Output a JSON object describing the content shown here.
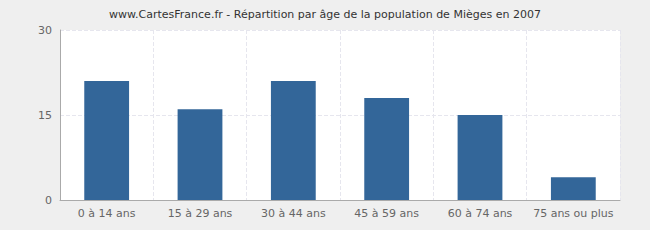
{
  "chart_data": {
    "type": "bar",
    "title": "www.CartesFrance.fr - Répartition par âge de la population de Mièges en 2007",
    "categories": [
      "0 à 14 ans",
      "15 à 29 ans",
      "30 à 44 ans",
      "45 à 59 ans",
      "60 à 74 ans",
      "75 ans ou plus"
    ],
    "values": [
      21,
      16,
      21,
      18,
      15,
      4
    ],
    "color": "#336699",
    "ylim": [
      0,
      30
    ],
    "yticks": [
      0,
      15,
      30
    ],
    "grid": true
  }
}
